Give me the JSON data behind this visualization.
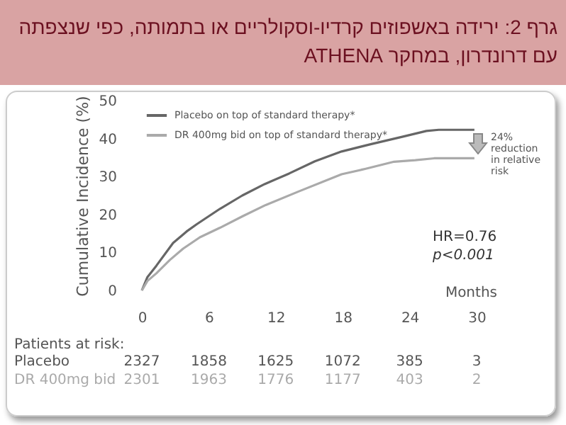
{
  "chart_data": {
    "type": "line",
    "title": "גרף 2: ירידה באשפוזים קרדיו-וסקולריים או בתמותה, כפי שנצפתה עם דרונדרון, במחקר ATHENA",
    "xlabel": "Months",
    "ylabel": "Cumulative Incidence (%)",
    "xlim": [
      0,
      30
    ],
    "xticks": [
      0,
      6,
      12,
      18,
      24,
      30
    ],
    "ylim": [
      0,
      50
    ],
    "yticks": [
      0,
      10,
      20,
      30,
      40,
      50
    ],
    "legend": "top left",
    "grid": false,
    "marker": "none",
    "line_style": "solid",
    "series": [
      {
        "name": "Placebo on top of standard therapy*",
        "color": "#666666",
        "x": [
          0,
          0.5,
          1.3,
          2.8,
          4,
          4.9,
          7,
          9,
          11,
          13.2,
          15.5,
          17.9,
          20.5,
          23.4,
          25.5,
          26.6,
          29.8
        ],
        "values": [
          0,
          3.5,
          6.5,
          12.5,
          15.5,
          17.4,
          21.5,
          25,
          28,
          30.8,
          34,
          36.6,
          38.5,
          40.5,
          42,
          42.3,
          42.3
        ]
      },
      {
        "name": "DR 400mg bid on top of standard therapy*",
        "color": "#aaaaaa",
        "x": [
          0,
          0.5,
          1.3,
          2.5,
          3.7,
          5.2,
          7,
          9,
          11.1,
          14,
          17.9,
          20,
          22.6,
          24.5,
          26.2,
          29.8
        ],
        "values": [
          0,
          2.5,
          4.5,
          8,
          11,
          14,
          16.5,
          19.5,
          22.5,
          26,
          30.6,
          32,
          33.9,
          34.3,
          34.8,
          34.8
        ]
      }
    ],
    "annotations": [
      "24% reduction in relative risk",
      "HR=0.76",
      "p<0.001",
      "Patients at risk:",
      "Placebo",
      "2327",
      "1858",
      "1625",
      "1072",
      "385",
      "3",
      "DR 400mg bid",
      "2301",
      "1963",
      "1776",
      "1177",
      "403",
      "2"
    ]
  }
}
